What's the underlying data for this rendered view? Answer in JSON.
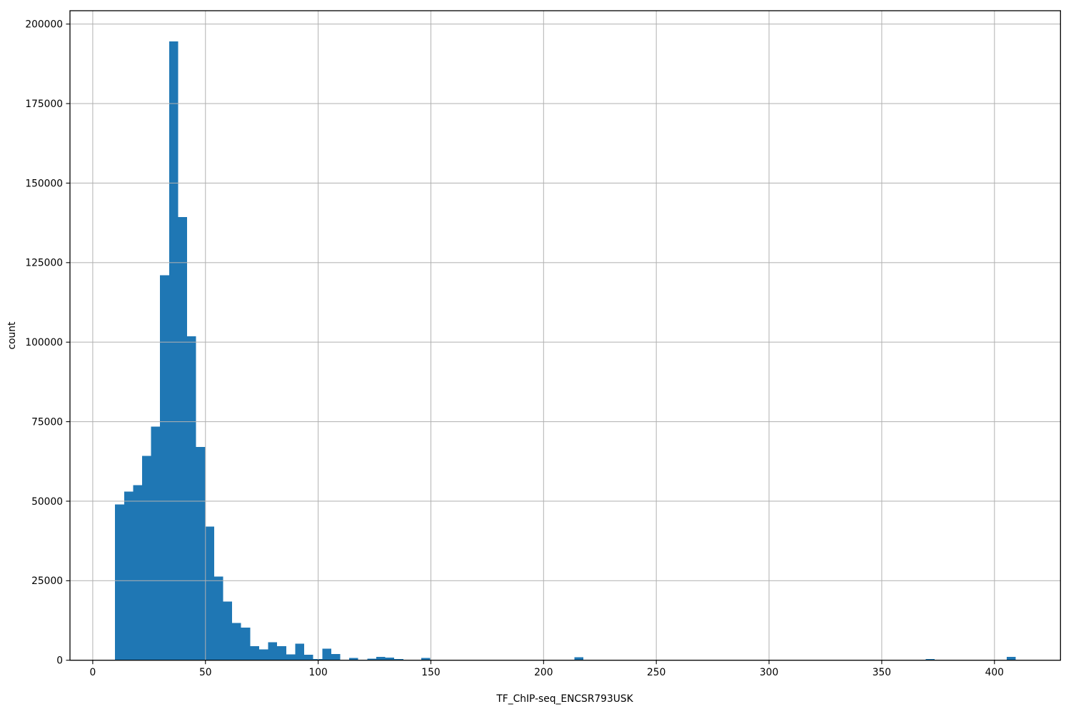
{
  "figure": {
    "background": "#ffffff",
    "text_color": "#000000"
  },
  "chart_data": {
    "type": "histogram",
    "title": "",
    "xlabel": "TF_ChIP-seq_ENCSR793USK",
    "ylabel": "count",
    "bar_color": "#1f77b4",
    "grid": true,
    "grid_color": "#b0b0b0",
    "spine_color": "#000000",
    "tick_color": "#000000",
    "legend": "none",
    "xlim": [
      -10.1,
      429.3
    ],
    "ylim": [
      0,
      204200
    ],
    "x_ticks": [
      0,
      50,
      100,
      150,
      200,
      250,
      300,
      350,
      400
    ],
    "y_ticks": [
      0,
      25000,
      50000,
      75000,
      100000,
      125000,
      150000,
      175000,
      200000
    ],
    "x_tick_labels": [
      "0",
      "50",
      "100",
      "150",
      "200",
      "250",
      "300",
      "350",
      "400"
    ],
    "y_tick_labels": [
      "0",
      "25000",
      "50000",
      "75000",
      "100000",
      "125000",
      "150000",
      "175000",
      "200000"
    ],
    "bin_start": 9.9,
    "bin_width": 3.995,
    "counts": [
      49000,
      53000,
      55000,
      64200,
      73500,
      121000,
      194500,
      139300,
      101800,
      67000,
      42000,
      26300,
      18400,
      11700,
      10300,
      4400,
      3400,
      5700,
      4400,
      1800,
      5200,
      1700,
      400,
      3600,
      1900,
      0,
      700,
      200,
      500,
      1100,
      800,
      400,
      0,
      0,
      700,
      0,
      0,
      0,
      0,
      0,
      0,
      0,
      0,
      0,
      0,
      0,
      0,
      0,
      0,
      0,
      0,
      900,
      0,
      0,
      0,
      0,
      0,
      0,
      0,
      0,
      0,
      0,
      0,
      0,
      0,
      0,
      0,
      0,
      0,
      0,
      0,
      0,
      0,
      0,
      0,
      0,
      0,
      0,
      0,
      0,
      0,
      0,
      0,
      0,
      0,
      0,
      0,
      0,
      0,
      0,
      400,
      0,
      0,
      0,
      0,
      0,
      0,
      0,
      0,
      1050
    ]
  }
}
